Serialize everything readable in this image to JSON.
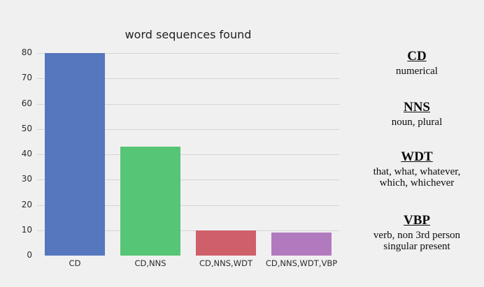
{
  "title": "word sequences found",
  "chart_data": {
    "type": "bar",
    "title": "word sequences found",
    "categories": [
      "CD",
      "CD,NNS",
      "CD,NNS,WDT",
      "CD,NNS,WDT,VBP"
    ],
    "values": [
      80,
      43,
      10,
      9
    ],
    "bar_colors": [
      "#5577be",
      "#56c575",
      "#cf606a",
      "#b27abe"
    ],
    "xlabel": "",
    "ylabel": "",
    "ylim": [
      0,
      80
    ],
    "yticks": [
      0,
      10,
      20,
      30,
      40,
      50,
      60,
      70,
      80
    ],
    "grid": true,
    "legend_position": "right"
  },
  "legend": {
    "items": [
      {
        "term": "CD",
        "definition": "numerical"
      },
      {
        "term": "NNS",
        "definition": "noun, plural"
      },
      {
        "term": "WDT",
        "definition": "that, what, whatever, which, whichever"
      },
      {
        "term": "VBP",
        "definition": "verb, non 3rd person singular present"
      }
    ]
  },
  "colors": {
    "background": "#f0f0f0",
    "gridline": "#d4d4d4",
    "text": "#2b2b2b"
  }
}
